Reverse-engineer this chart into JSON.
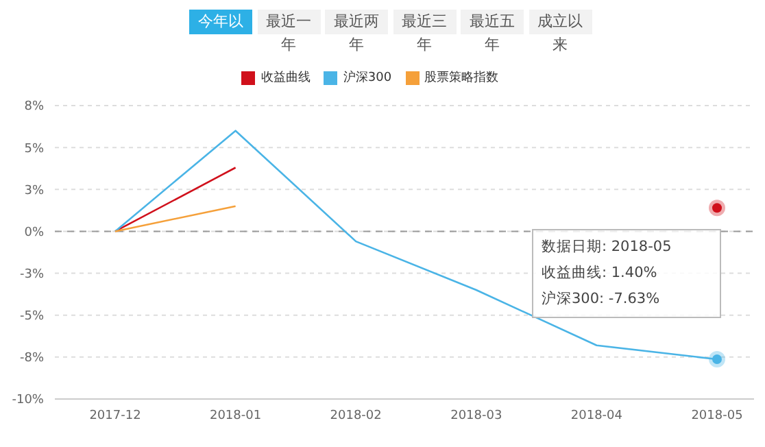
{
  "chart_data": {
    "type": "line",
    "categories": [
      "2017-12",
      "2018-01",
      "2018-02",
      "2018-03",
      "2018-04",
      "2018-05"
    ],
    "series": [
      {
        "name": "收益曲线",
        "color": "#d0101b",
        "values": [
          0,
          3.8,
          null,
          null,
          null,
          1.4
        ]
      },
      {
        "name": "沪深300",
        "color": "#4ab4e6",
        "values": [
          0,
          6.0,
          -0.6,
          -3.5,
          -6.8,
          -7.63
        ]
      },
      {
        "name": "股票策略指数",
        "color": "#f5a03a",
        "values": [
          0,
          1.5,
          null,
          null,
          null,
          null
        ]
      }
    ],
    "ylim": [
      -10,
      7.5
    ],
    "yticks": [
      {
        "value": 7.5,
        "label": "8%"
      },
      {
        "value": 5,
        "label": "5%"
      },
      {
        "value": 2.5,
        "label": "3%"
      },
      {
        "value": 0,
        "label": "0%"
      },
      {
        "value": -2.5,
        "label": "-3%"
      },
      {
        "value": -5,
        "label": "-5%"
      },
      {
        "value": -7.5,
        "label": "-8%"
      },
      {
        "value": -10,
        "label": "-10%"
      }
    ],
    "ref_lines": [
      {
        "axis": "y",
        "value": 0,
        "color": "#999999",
        "line_style": "dashed"
      }
    ],
    "grid": "y",
    "legend": "top",
    "marker": "none",
    "line_style": "solid",
    "annotations": [
      "今年以",
      "最近一年",
      "最近两年",
      "最近三年",
      "最近五年",
      "成立以来",
      "数据日期: 2018-05",
      "收益曲线: 1.40%",
      "沪深300: -7.63%"
    ]
  }
}
